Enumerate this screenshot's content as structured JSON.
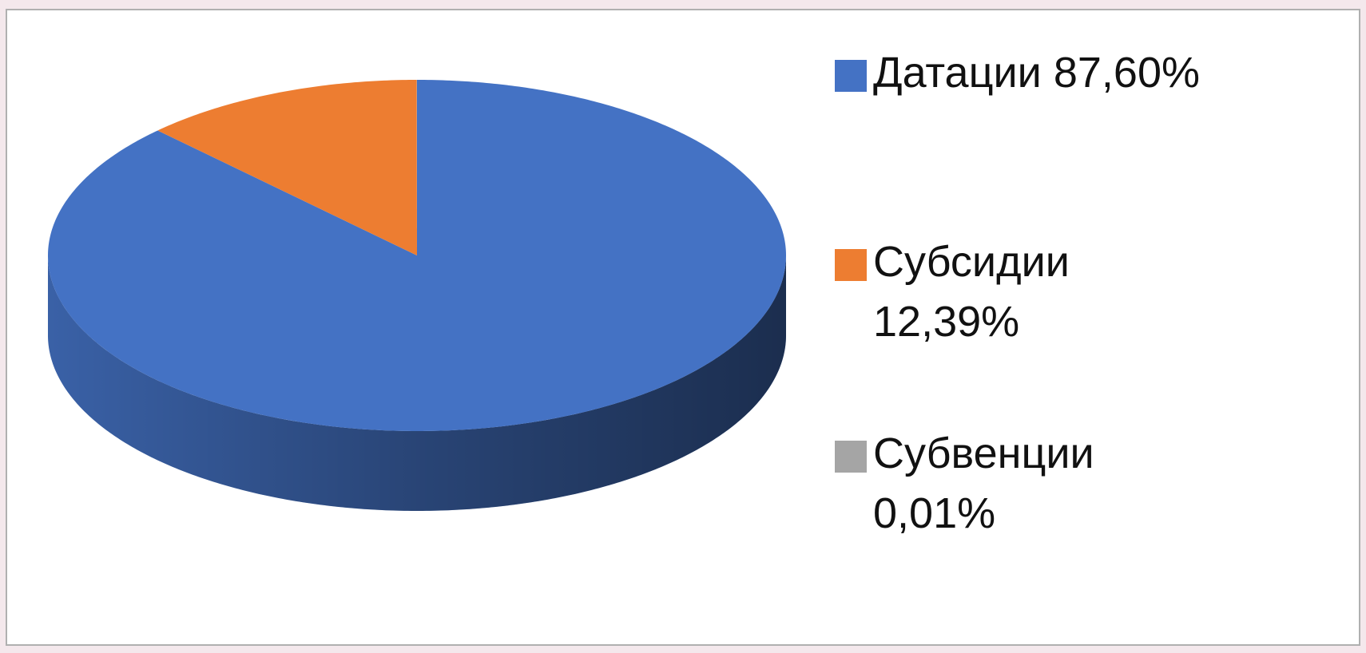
{
  "chart_data": {
    "type": "pie",
    "categories": [
      "Датации",
      "Субсидии",
      "Субвенции"
    ],
    "values": [
      87.6,
      12.39,
      0.01
    ],
    "value_labels": [
      "87,60%",
      "12,39%",
      "0,01%"
    ],
    "colors": [
      "#4472c4",
      "#ed7d31",
      "#a5a5a5"
    ],
    "legend": "right"
  }
}
